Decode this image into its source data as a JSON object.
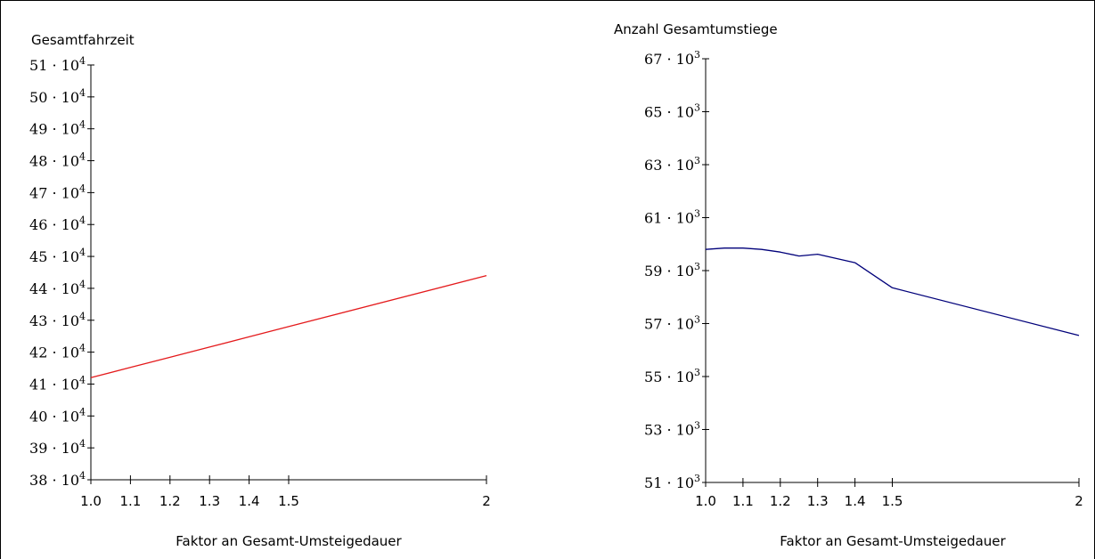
{
  "chart_data": [
    {
      "type": "line",
      "ylabel": "Gesamtfahrzeit",
      "xlabel": "Faktor an Gesamt-Umsteigedauer",
      "x_ticks": [
        1.0,
        1.1,
        1.2,
        1.3,
        1.4,
        1.5,
        2
      ],
      "x_tick_labels": [
        "1.0",
        "1.1",
        "1.2",
        "1.3",
        "1.4",
        "1.5",
        "2"
      ],
      "xlim": [
        1.0,
        2.0
      ],
      "ylim": [
        380000,
        510000
      ],
      "y_ticks": [
        380000,
        390000,
        400000,
        410000,
        420000,
        430000,
        440000,
        450000,
        460000,
        470000,
        480000,
        490000,
        500000,
        510000
      ],
      "y_tick_mantissas": [
        "38",
        "39",
        "40",
        "41",
        "42",
        "43",
        "44",
        "45",
        "46",
        "47",
        "48",
        "49",
        "50",
        "51"
      ],
      "y_tick_base": "10",
      "y_tick_exponent": "4",
      "series": [
        {
          "color": "#e41a1c",
          "x": [
            1.0,
            1.1,
            1.2,
            1.3,
            1.4,
            1.5,
            2.0
          ],
          "values": [
            412000,
            415200,
            418400,
            421600,
            424800,
            428000,
            444000
          ]
        }
      ]
    },
    {
      "type": "line",
      "ylabel": "Anzahl Gesamtumstiege",
      "xlabel": "Faktor an Gesamt-Umsteigedauer",
      "x_ticks": [
        1.0,
        1.1,
        1.2,
        1.3,
        1.4,
        1.5,
        2
      ],
      "x_tick_labels": [
        "1.0",
        "1.1",
        "1.2",
        "1.3",
        "1.4",
        "1.5",
        "2"
      ],
      "xlim": [
        1.0,
        2.0
      ],
      "ylim": [
        51000,
        67000
      ],
      "y_ticks": [
        51000,
        53000,
        55000,
        57000,
        59000,
        61000,
        63000,
        65000,
        67000
      ],
      "y_tick_mantissas": [
        "51",
        "53",
        "55",
        "57",
        "59",
        "61",
        "63",
        "65",
        "67"
      ],
      "y_tick_base": "10",
      "y_tick_exponent": "3",
      "series": [
        {
          "color": "#00007a",
          "x": [
            1.0,
            1.05,
            1.1,
            1.15,
            1.2,
            1.25,
            1.3,
            1.4,
            1.5,
            2.0
          ],
          "values": [
            59800,
            59850,
            59850,
            59800,
            59700,
            59550,
            59620,
            59300,
            58350,
            56550
          ]
        }
      ]
    }
  ]
}
